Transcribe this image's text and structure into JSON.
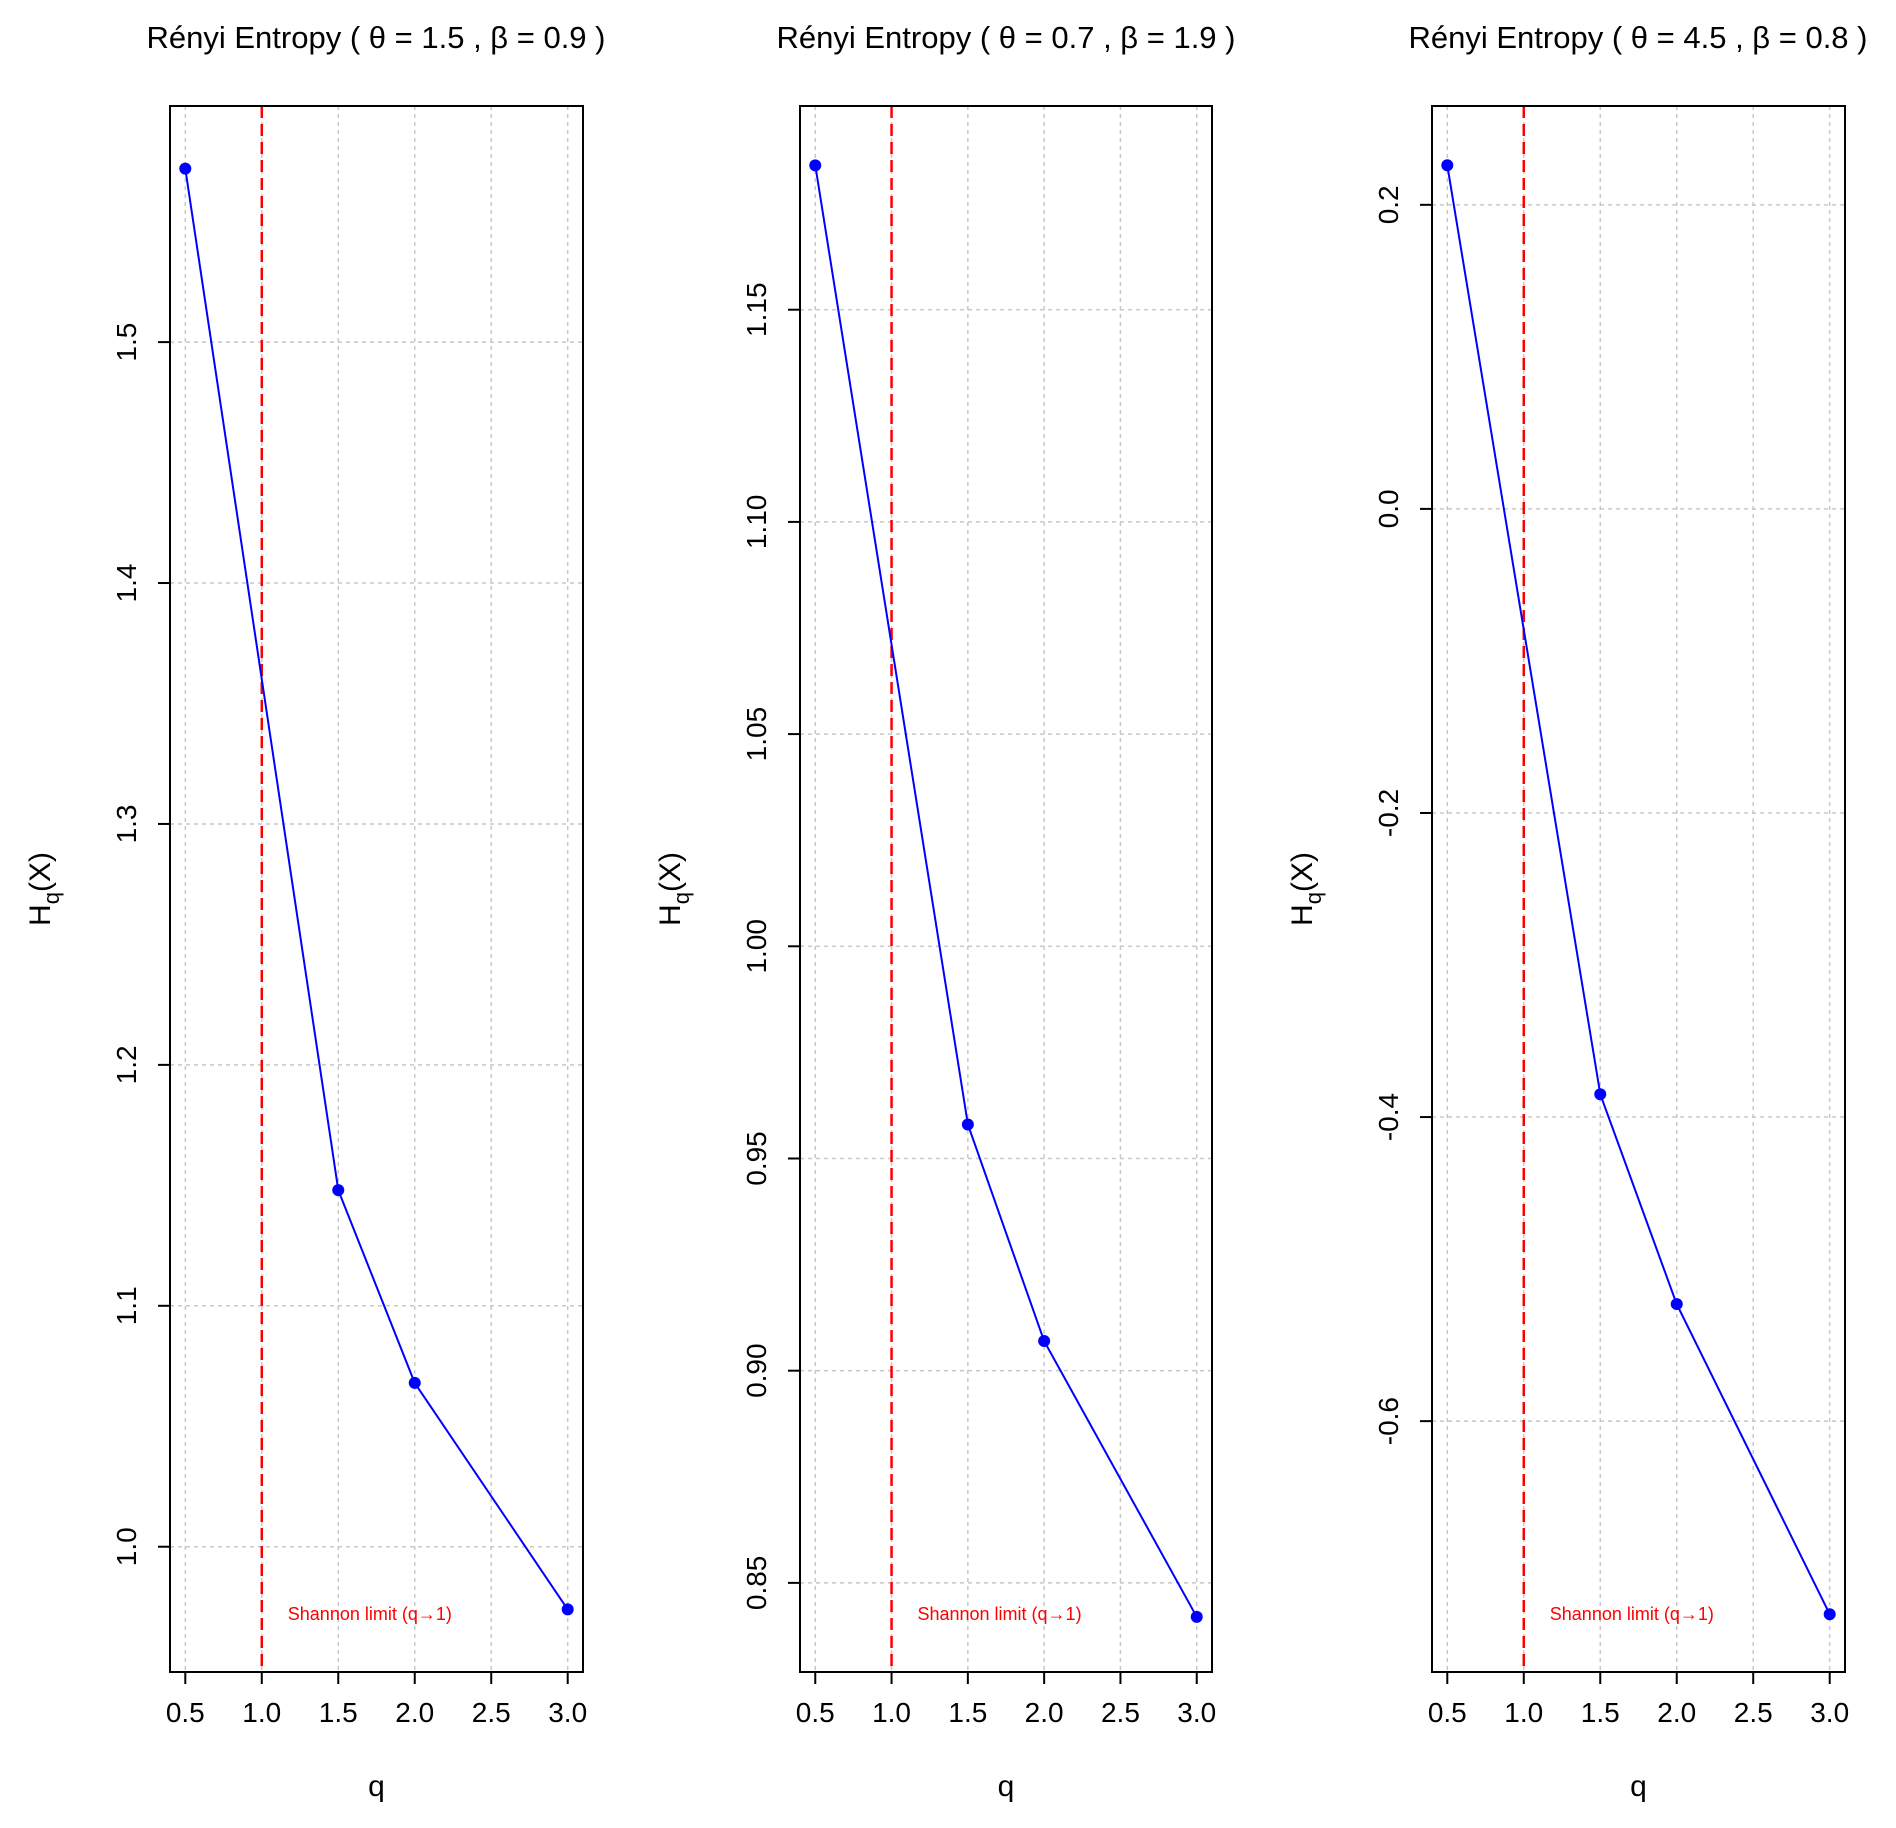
{
  "chart_data": [
    {
      "type": "line",
      "title": "Rényi Entropy",
      "theta": "1.5",
      "beta": "0.9",
      "xlabel": "q",
      "ylabel": "H",
      "ylabel_sub": "q",
      "ylabel_suffix": "(X)",
      "x": [
        0.5,
        1.5,
        2.0,
        3.0
      ],
      "y": [
        1.572,
        1.148,
        1.068,
        0.974
      ],
      "xlim": [
        0.4,
        3.1
      ],
      "ylim": [
        0.948,
        1.598
      ],
      "xticks": [
        0.5,
        1.0,
        1.5,
        2.0,
        2.5,
        3.0
      ],
      "xtick_labels": [
        "0.5",
        "1.0",
        "1.5",
        "2.0",
        "2.5",
        "3.0"
      ],
      "yticks": [
        1.0,
        1.1,
        1.2,
        1.3,
        1.4,
        1.5
      ],
      "ytick_labels": [
        "1.0",
        "1.1",
        "1.2",
        "1.3",
        "1.4",
        "1.5"
      ],
      "vline": 1.0,
      "annotation": "Shannon limit (q→1)",
      "grid": true
    },
    {
      "type": "line",
      "title": "Rényi Entropy",
      "theta": "0.7",
      "beta": "1.9",
      "xlabel": "q",
      "ylabel": "H",
      "ylabel_sub": "q",
      "ylabel_suffix": "(X)",
      "x": [
        0.5,
        1.5,
        2.0,
        3.0
      ],
      "y": [
        1.184,
        0.958,
        0.907,
        0.842
      ],
      "xlim": [
        0.4,
        3.1
      ],
      "ylim": [
        0.829,
        1.198
      ],
      "xticks": [
        0.5,
        1.0,
        1.5,
        2.0,
        2.5,
        3.0
      ],
      "xtick_labels": [
        "0.5",
        "1.0",
        "1.5",
        "2.0",
        "2.5",
        "3.0"
      ],
      "yticks": [
        0.85,
        0.9,
        0.95,
        1.0,
        1.05,
        1.1,
        1.15
      ],
      "ytick_labels": [
        "0.85",
        "0.90",
        "0.95",
        "1.00",
        "1.05",
        "1.10",
        "1.15"
      ],
      "vline": 1.0,
      "annotation": "Shannon limit (q→1)",
      "grid": true
    },
    {
      "type": "line",
      "title": "Rényi Entropy",
      "theta": "4.5",
      "beta": "0.8",
      "xlabel": "q",
      "ylabel": "H",
      "ylabel_sub": "q",
      "ylabel_suffix": "(X)",
      "x": [
        0.5,
        1.5,
        2.0,
        3.0
      ],
      "y": [
        0.226,
        -0.385,
        -0.523,
        -0.727
      ],
      "xlim": [
        0.4,
        3.1
      ],
      "ylim": [
        -0.765,
        0.265
      ],
      "xticks": [
        0.5,
        1.0,
        1.5,
        2.0,
        2.5,
        3.0
      ],
      "xtick_labels": [
        "0.5",
        "1.0",
        "1.5",
        "2.0",
        "2.5",
        "3.0"
      ],
      "yticks": [
        -0.6,
        -0.4,
        -0.2,
        0.0,
        0.2
      ],
      "ytick_labels": [
        "-0.6",
        "-0.4",
        "-0.2",
        "0.0",
        "0.2"
      ],
      "vline": 1.0,
      "annotation": "Shannon limit (q→1)",
      "grid": true
    }
  ],
  "colors": {
    "line": "#0000ff",
    "point": "#0000ff",
    "vline": "#ff0000",
    "annotation": "#ff0000",
    "grid": "#c8c8c8",
    "axis": "#000000",
    "text": "#000000"
  }
}
